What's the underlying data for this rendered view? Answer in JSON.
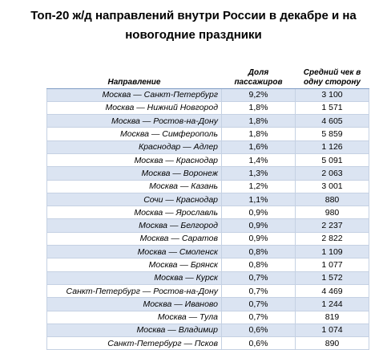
{
  "title": {
    "line1": "Топ-20 ж/д направлений внутри России в декабре и на",
    "line2": "новогодние праздники"
  },
  "table": {
    "headers": {
      "route": "Направление",
      "share": "Доля пассажиров",
      "check": "Средний чек в одну сторону"
    },
    "rows": [
      {
        "route": "Москва — Санкт-Петербург",
        "share": "9,2%",
        "check": "3 100"
      },
      {
        "route": "Москва — Нижний Новгород",
        "share": "1,8%",
        "check": "1 571"
      },
      {
        "route": "Москва — Ростов-на-Дону",
        "share": "1,8%",
        "check": "4 605"
      },
      {
        "route": "Москва — Симферополь",
        "share": "1,8%",
        "check": "5 859"
      },
      {
        "route": "Краснодар — Адлер",
        "share": "1,6%",
        "check": "1 126"
      },
      {
        "route": "Москва — Краснодар",
        "share": "1,4%",
        "check": "5 091"
      },
      {
        "route": "Москва — Воронеж",
        "share": "1,3%",
        "check": "2 063"
      },
      {
        "route": "Москва — Казань",
        "share": "1,2%",
        "check": "3 001"
      },
      {
        "route": "Сочи — Краснодар",
        "share": "1,1%",
        "check": "880"
      },
      {
        "route": "Москва — Ярославль",
        "share": "0,9%",
        "check": "980"
      },
      {
        "route": "Москва — Белгород",
        "share": "0,9%",
        "check": "2 237"
      },
      {
        "route": "Москва — Саратов",
        "share": "0,9%",
        "check": "2 822"
      },
      {
        "route": "Москва — Смоленск",
        "share": "0,8%",
        "check": "1 109"
      },
      {
        "route": "Москва — Брянск",
        "share": "0,8%",
        "check": "1 077"
      },
      {
        "route": "Москва — Курск",
        "share": "0,7%",
        "check": "1 572"
      },
      {
        "route": "Санкт-Петербург — Ростов-на-Дону",
        "share": "0,7%",
        "check": "4 469"
      },
      {
        "route": "Москва — Иваново",
        "share": "0,7%",
        "check": "1 244"
      },
      {
        "route": "Москва — Тула",
        "share": "0,7%",
        "check": "819"
      },
      {
        "route": "Москва — Владимир",
        "share": "0,6%",
        "check": "1 074"
      },
      {
        "route": "Санкт-Петербург — Псков",
        "share": "0,6%",
        "check": "890"
      }
    ]
  },
  "colors": {
    "band": "#dbe4f2",
    "grid": "#c5d1e3"
  }
}
